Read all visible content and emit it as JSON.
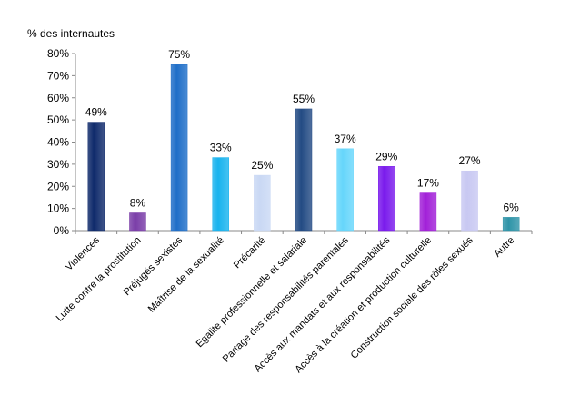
{
  "chart_data": {
    "type": "bar",
    "ylabel": "% des internautes",
    "ylim": [
      0,
      80
    ],
    "yticks": [
      "0%",
      "10%",
      "20%",
      "30%",
      "40%",
      "50%",
      "60%",
      "70%",
      "80%"
    ],
    "grid": false,
    "categories": [
      "Violences",
      "Lutte contre la prostitution",
      "Préjugés sexistes",
      "Maîtrise de la sexualité",
      "Précarité",
      "Egalité professionnelle et salariale",
      "Partage des responsabilités parentales",
      "Accès aux mandats et aux responsabilités",
      "Accès à la création et production culturelle",
      "Construction sociale des rôles sexués",
      "Autre"
    ],
    "values": [
      49,
      8,
      75,
      33,
      25,
      55,
      37,
      29,
      17,
      27,
      6
    ],
    "data_labels": [
      "49%",
      "8%",
      "75%",
      "33%",
      "25%",
      "55%",
      "37%",
      "29%",
      "17%",
      "27%",
      "6%"
    ],
    "colors": [
      "#0f2a6b",
      "#7a3da8",
      "#1e6ec8",
      "#19b3ee",
      "#c9d8f4",
      "#234b84",
      "#66d6fb",
      "#7a1aec",
      "#a220d8",
      "#c8c8f2",
      "#2e94a8"
    ]
  }
}
